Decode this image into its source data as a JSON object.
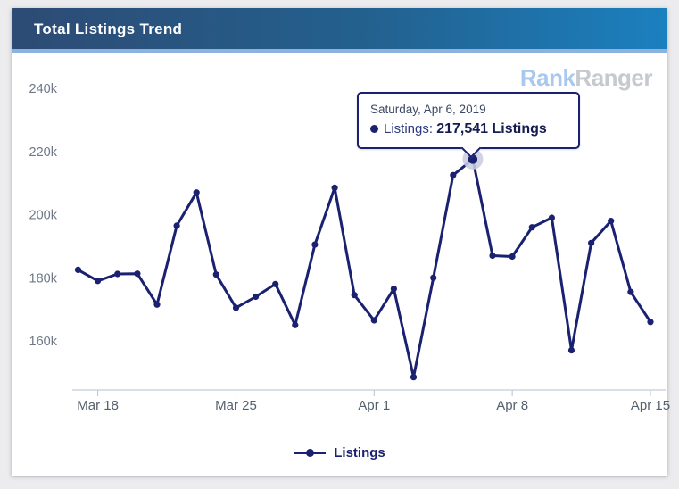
{
  "header": {
    "title": "Total Listings Trend"
  },
  "watermark": {
    "part1": "Rank",
    "part2": "Ranger"
  },
  "tooltip": {
    "date": "Saturday, Apr 6, 2019",
    "series_label": "Listings:",
    "value_text": "217,541 Listings"
  },
  "legend": {
    "label": "Listings"
  },
  "colors": {
    "line": "#1a2170",
    "halo": "#c9cde0",
    "axis": "#b6c2d4",
    "axis_text_x": "#55606e",
    "axis_text_y": "#6e7886",
    "header_gradient_left": "#2d4b74",
    "header_gradient_right": "#1b80bf",
    "header_strip": "#8db2dd",
    "watermark_rank": "#a9c8ef",
    "watermark_ranger": "#c6cacf"
  },
  "chart_data": {
    "type": "line",
    "title": "Total Listings Trend",
    "x": [
      "Mar 17",
      "Mar 18",
      "Mar 19",
      "Mar 20",
      "Mar 21",
      "Mar 22",
      "Mar 23",
      "Mar 24",
      "Mar 25",
      "Mar 26",
      "Mar 27",
      "Mar 28",
      "Mar 29",
      "Mar 30",
      "Mar 31",
      "Apr 1",
      "Apr 2",
      "Apr 3",
      "Apr 4",
      "Apr 5",
      "Apr 6",
      "Apr 7",
      "Apr 8",
      "Apr 9",
      "Apr 10",
      "Apr 11",
      "Apr 12",
      "Apr 13",
      "Apr 14",
      "Apr 15"
    ],
    "series": [
      {
        "name": "Listings",
        "values": [
          182500,
          179000,
          181200,
          181300,
          171500,
          196500,
          207000,
          181000,
          170500,
          174000,
          178000,
          165000,
          190500,
          208500,
          174500,
          166500,
          176500,
          148500,
          180000,
          212500,
          217541,
          187000,
          186700,
          196000,
          199000,
          157000,
          191000,
          198000,
          175500,
          166000
        ]
      }
    ],
    "highlight_index": 20,
    "highlight_exact_value": 217541,
    "x_tick_labels": [
      "Mar 18",
      "Mar 25",
      "Apr 1",
      "Apr 8",
      "Apr 15"
    ],
    "x_tick_indices": [
      1,
      8,
      15,
      22,
      29
    ],
    "y_tick_labels": [
      "240k",
      "220k",
      "200k",
      "180k",
      "160k"
    ],
    "y_tick_values": [
      240000,
      220000,
      200000,
      180000,
      160000
    ],
    "ylim": [
      144500,
      244000
    ],
    "grid": false,
    "legend_position": "bottom",
    "marker": "circle"
  }
}
